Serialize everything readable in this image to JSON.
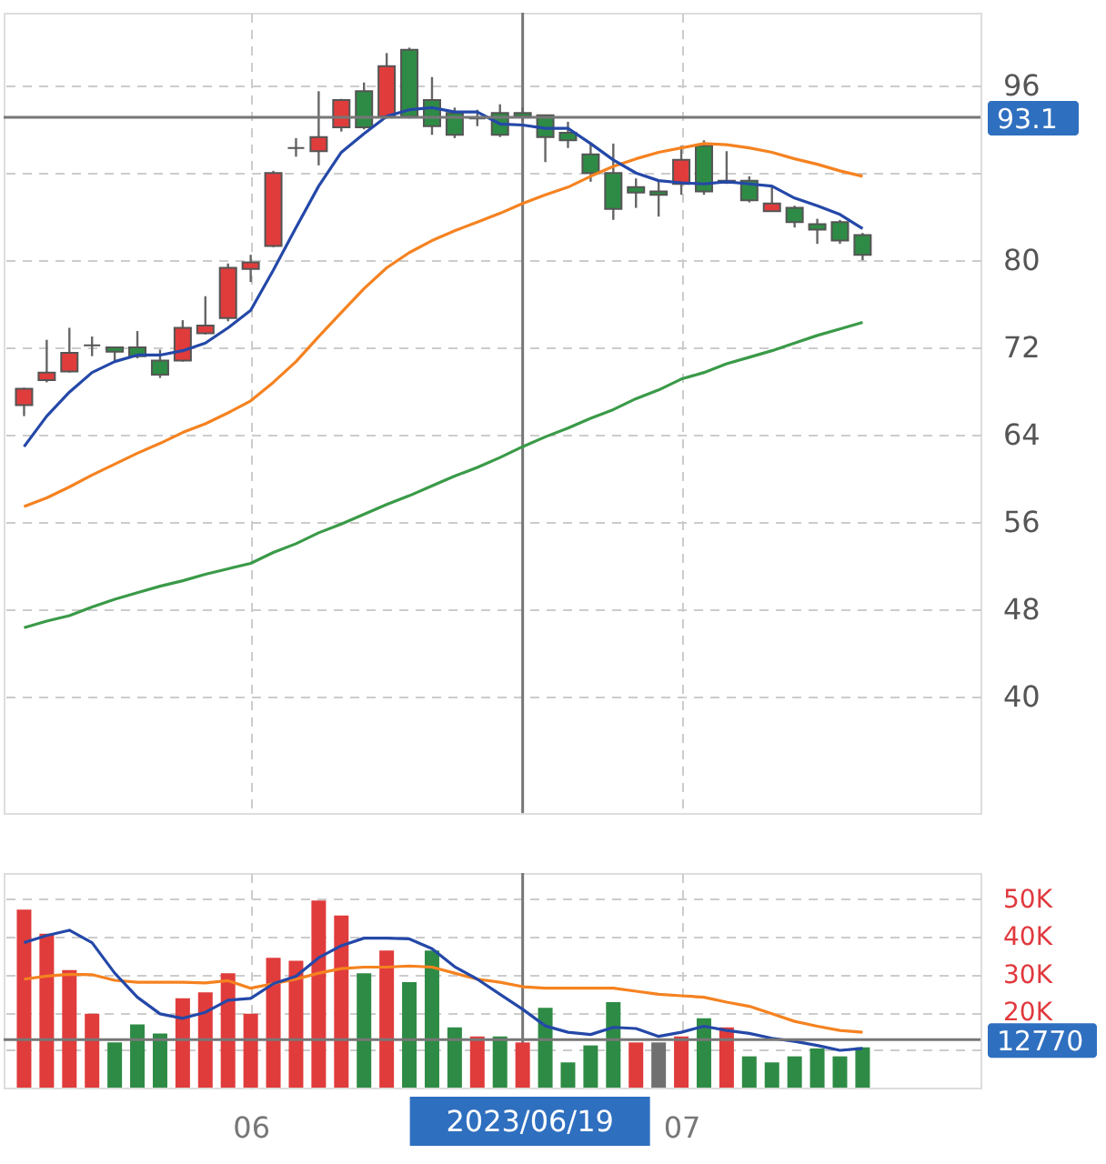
{
  "chart_data": [
    {
      "type": "candlestick",
      "categories": [
        null,
        null,
        null,
        null,
        null,
        null,
        null,
        null,
        null,
        null,
        "06",
        null,
        null,
        null,
        null,
        null,
        null,
        null,
        null,
        null,
        null,
        null,
        "2023/06/19",
        null,
        null,
        null,
        null,
        null,
        null,
        "07",
        null,
        null,
        null,
        null,
        null,
        null,
        null,
        null
      ],
      "ohlc": [
        [
          66.7,
          68.3,
          65.7,
          68.2
        ],
        [
          69.0,
          72.7,
          68.8,
          69.7
        ],
        [
          69.8,
          73.8,
          69.7,
          71.5
        ],
        [
          72.2,
          73.0,
          71.2,
          72.2
        ],
        [
          72.0,
          72.0,
          70.7,
          71.6
        ],
        [
          72.0,
          73.5,
          71.0,
          71.2
        ],
        [
          70.8,
          71.8,
          69.2,
          69.5
        ],
        [
          70.8,
          74.5,
          70.7,
          73.8
        ],
        [
          73.3,
          76.7,
          73.2,
          74.0
        ],
        [
          74.7,
          79.7,
          74.4,
          79.3
        ],
        [
          79.2,
          80.5,
          78.0,
          79.8
        ],
        [
          81.3,
          88.2,
          81.2,
          88.0
        ],
        [
          90.3,
          91.2,
          89.5,
          90.3
        ],
        [
          90.0,
          95.5,
          88.7,
          91.3
        ],
        [
          92.2,
          94.8,
          91.8,
          94.7
        ],
        [
          95.5,
          96.3,
          92.0,
          92.2
        ],
        [
          93.2,
          99.0,
          93.0,
          97.8
        ],
        [
          99.3,
          99.5,
          93.0,
          93.2
        ],
        [
          94.7,
          96.8,
          91.5,
          92.3
        ],
        [
          93.5,
          94.0,
          91.2,
          91.5
        ],
        [
          93.0,
          93.8,
          92.3,
          93.0
        ],
        [
          93.5,
          94.3,
          91.3,
          91.5
        ],
        [
          93.5,
          94.0,
          92.8,
          93.2
        ],
        [
          93.3,
          93.3,
          89.0,
          91.3
        ],
        [
          91.7,
          92.7,
          90.3,
          91.0
        ],
        [
          89.7,
          90.7,
          87.2,
          88.0
        ],
        [
          88.0,
          90.7,
          83.7,
          84.7
        ],
        [
          86.7,
          87.5,
          84.8,
          86.2
        ],
        [
          86.3,
          87.3,
          84.0,
          86.0
        ],
        [
          87.0,
          90.5,
          86.0,
          89.2
        ],
        [
          90.5,
          91.0,
          86.0,
          86.3
        ],
        [
          87.3,
          90.0,
          87.0,
          87.1
        ],
        [
          87.3,
          87.7,
          85.3,
          85.5
        ],
        [
          84.5,
          86.8,
          84.5,
          85.2
        ],
        [
          84.8,
          85.0,
          83.0,
          83.5
        ],
        [
          83.3,
          83.8,
          81.5,
          82.8
        ],
        [
          83.5,
          83.7,
          81.5,
          81.8
        ],
        [
          82.3,
          82.5,
          80.0,
          80.5
        ]
      ],
      "colors": [
        "#e03c3c",
        "#e03c3c",
        "#e03c3c",
        "#606060",
        "#2e8b45",
        "#2e8b45",
        "#2e8b45",
        "#e03c3c",
        "#e03c3c",
        "#e03c3c",
        "#e03c3c",
        "#e03c3c",
        "#606060",
        "#e03c3c",
        "#e03c3c",
        "#2e8b45",
        "#e03c3c",
        "#2e8b45",
        "#2e8b45",
        "#2e8b45",
        "#606060",
        "#2e8b45",
        "#2e8b45",
        "#2e8b45",
        "#2e8b45",
        "#2e8b45",
        "#2e8b45",
        "#2e8b45",
        "#2e8b45",
        "#e03c3c",
        "#2e8b45",
        "#2e8b45",
        "#2e8b45",
        "#e03c3c",
        "#2e8b45",
        "#2e8b45",
        "#2e8b45",
        "#2e8b45"
      ],
      "series": [
        {
          "type": "line",
          "color": "#3a9a48",
          "values": [
            46.3,
            46.9,
            47.4,
            48.2,
            48.9,
            49.5,
            50.1,
            50.6,
            51.2,
            51.7,
            52.2,
            53.2,
            54.0,
            55.0,
            55.8,
            56.7,
            57.6,
            58.4,
            59.3,
            60.2,
            61.0,
            61.9,
            62.9,
            63.8,
            64.6,
            65.5,
            66.3,
            67.3,
            68.1,
            69.1,
            69.7,
            70.5,
            71.1,
            71.7,
            72.4,
            73.1,
            73.7,
            74.3
          ]
        },
        {
          "type": "line",
          "color": "#f58220",
          "values": [
            57.4,
            58.2,
            59.2,
            60.3,
            61.3,
            62.3,
            63.2,
            64.2,
            65.0,
            66.0,
            67.1,
            68.8,
            70.7,
            73.0,
            75.2,
            77.4,
            79.3,
            80.7,
            81.8,
            82.7,
            83.5,
            84.3,
            85.2,
            86.0,
            86.7,
            87.7,
            88.6,
            89.3,
            89.9,
            90.3,
            90.7,
            90.6,
            90.3,
            89.9,
            89.3,
            88.8,
            88.2,
            87.7
          ]
        },
        {
          "type": "line",
          "color": "#2448a8",
          "values": [
            62.9,
            65.7,
            67.9,
            69.7,
            70.7,
            71.3,
            71.3,
            71.7,
            72.4,
            73.8,
            75.4,
            79.1,
            83.0,
            86.8,
            89.9,
            91.6,
            93.2,
            93.8,
            94.0,
            93.6,
            93.6,
            92.5,
            92.4,
            92.1,
            92.1,
            90.7,
            89.2,
            88.0,
            87.3,
            87.1,
            87.0,
            87.2,
            87.0,
            86.8,
            85.7,
            85.0,
            84.2,
            82.9
          ]
        }
      ],
      "ylim": [
        29.3,
        102.7
      ],
      "yticks": [
        40,
        48,
        56,
        64,
        72,
        80,
        {
          "value": 88,
          "label": null
        },
        96
      ],
      "grid": true,
      "tick_labels": "y",
      "marker": "none",
      "ref_lines": [
        {
          "axis": "y",
          "value": 93.1,
          "label": "93.1"
        },
        {
          "axis": "x",
          "value": "2023/06/19"
        }
      ]
    },
    {
      "type": "bar",
      "categories": [
        null,
        null,
        null,
        null,
        null,
        null,
        null,
        null,
        null,
        null,
        "06",
        null,
        null,
        null,
        null,
        null,
        null,
        null,
        null,
        null,
        null,
        null,
        "2023/06/19",
        null,
        null,
        null,
        null,
        null,
        null,
        "07",
        null,
        null,
        null,
        null,
        null,
        null,
        null,
        null
      ],
      "values": [
        47300,
        40900,
        31200,
        19600,
        12000,
        16800,
        14400,
        23700,
        25300,
        30400,
        19600,
        34500,
        33700,
        49700,
        45700,
        30400,
        36400,
        28000,
        36400,
        16000,
        13600,
        13600,
        12000,
        21200,
        6700,
        11200,
        22700,
        12000,
        12000,
        13600,
        18400,
        16000,
        8300,
        6700,
        8300,
        10400,
        8300,
        10700
      ],
      "colors": [
        "#e03c3c",
        "#e03c3c",
        "#e03c3c",
        "#e03c3c",
        "#2e8b45",
        "#2e8b45",
        "#2e8b45",
        "#e03c3c",
        "#e03c3c",
        "#e03c3c",
        "#e03c3c",
        "#e03c3c",
        "#e03c3c",
        "#e03c3c",
        "#e03c3c",
        "#2e8b45",
        "#e03c3c",
        "#2e8b45",
        "#2e8b45",
        "#2e8b45",
        "#e03c3c",
        "#2e8b45",
        "#e03c3c",
        "#2e8b45",
        "#2e8b45",
        "#2e8b45",
        "#2e8b45",
        "#e03c3c",
        "#707070",
        "#e03c3c",
        "#2e8b45",
        "#e03c3c",
        "#2e8b45",
        "#2e8b45",
        "#2e8b45",
        "#2e8b45",
        "#2e8b45",
        "#2e8b45"
      ],
      "series": [
        {
          "type": "line",
          "color": "#f58220",
          "values": [
            28800,
            29600,
            30100,
            30000,
            28500,
            28000,
            28000,
            28000,
            27800,
            28400,
            26400,
            27600,
            28800,
            30400,
            31600,
            32000,
            32000,
            32300,
            32000,
            30400,
            28800,
            28000,
            26800,
            26400,
            26400,
            26400,
            26400,
            25600,
            24800,
            24400,
            24000,
            22700,
            21600,
            19600,
            17600,
            16300,
            15200,
            14700
          ]
        },
        {
          "type": "line",
          "color": "#2448a8",
          "values": [
            38500,
            40400,
            41800,
            38500,
            30400,
            24000,
            19600,
            18400,
            20000,
            23200,
            23700,
            27600,
            29600,
            34500,
            37700,
            39700,
            39700,
            39500,
            36900,
            32100,
            28800,
            24800,
            20800,
            16400,
            14700,
            14100,
            16000,
            15700,
            13600,
            14700,
            16300,
            15200,
            14400,
            13100,
            12300,
            11200,
            9900,
            10400
          ]
        }
      ],
      "ylim": [
        0,
        57000
      ],
      "yticks": [
        {
          "value": 10000,
          "label": null
        },
        {
          "value": 20000,
          "label": "20K"
        },
        {
          "value": 30000,
          "label": "30K"
        },
        {
          "value": 40000,
          "label": "40K"
        },
        {
          "value": 50000,
          "label": "50K"
        }
      ],
      "grid": true,
      "marker": "none",
      "ref_lines": [
        {
          "axis": "y",
          "value": 12770,
          "label": "12770"
        },
        {
          "axis": "x",
          "value": "2023/06/19"
        }
      ]
    }
  ]
}
